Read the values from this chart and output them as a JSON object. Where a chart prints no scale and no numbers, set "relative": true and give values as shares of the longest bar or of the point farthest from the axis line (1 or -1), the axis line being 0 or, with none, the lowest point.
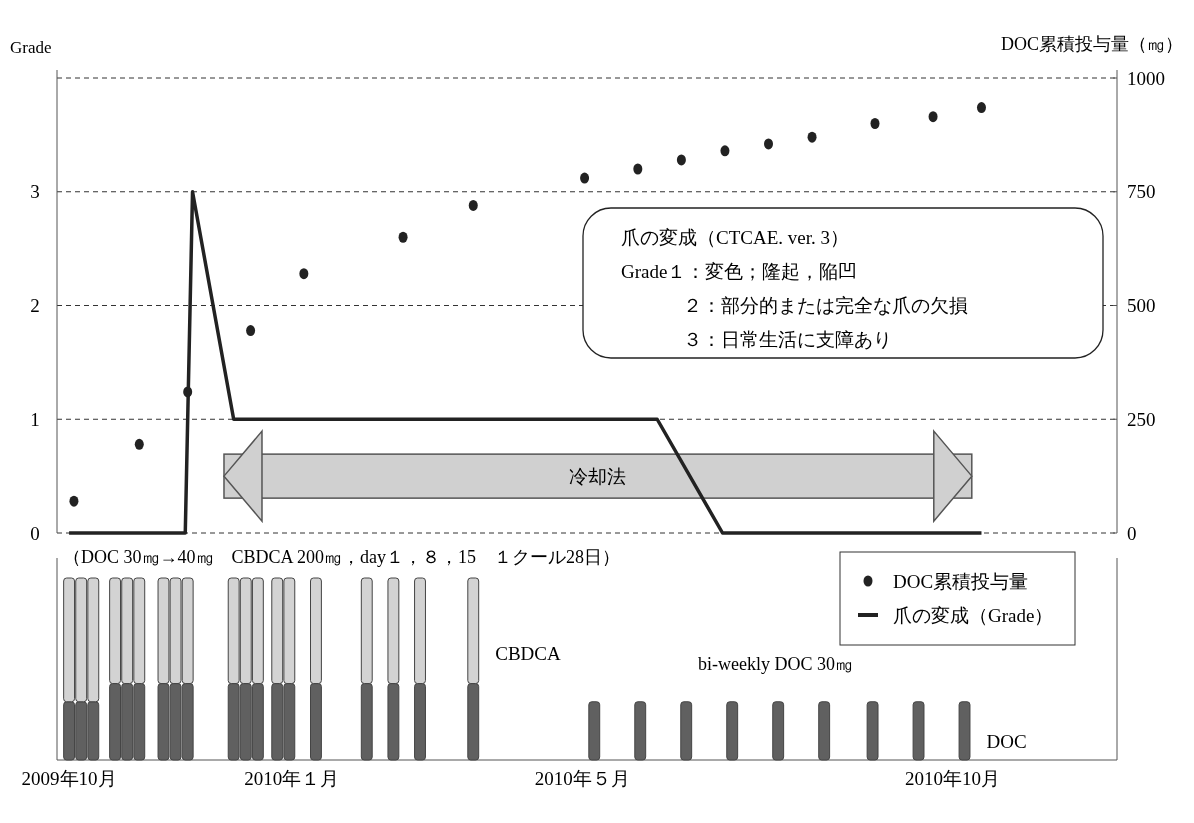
{
  "chart_data": [
    {
      "type": "line",
      "ylabel": "Grade",
      "y2label": "DOC累積投与量（㎎）",
      "xlim": [
        "2009-09-26",
        "2010-12-08"
      ],
      "ylim": [
        0,
        4
      ],
      "yticks": [
        0,
        1,
        2,
        3,
        {
          "value": 4,
          "label": null
        }
      ],
      "y2lim": [
        0,
        1000
      ],
      "y2ticks": [
        0,
        250,
        500,
        750,
        1000
      ],
      "grid": "y",
      "legend": "bottom right",
      "tick_labels": "y",
      "series": [
        {
          "name": "DOC累積投与量",
          "type": "scatter",
          "axis": "y2",
          "color": "#222222",
          "x": [
            "2009-10-03",
            "2009-10-30",
            "2009-11-19",
            "2009-12-15",
            "2010-01-06",
            "2010-02-16",
            "2010-03-17",
            "2010-05-02",
            "2010-05-24",
            "2010-06-11",
            "2010-06-29",
            "2010-07-17",
            "2010-08-04",
            "2010-08-30",
            "2010-09-23",
            "2010-10-13"
          ],
          "values": [
            70,
            195,
            310,
            445,
            570,
            650,
            720,
            780,
            800,
            820,
            840,
            855,
            870,
            900,
            915,
            935
          ]
        },
        {
          "name": "爪の変成（Grade）",
          "color": "#222222",
          "x": [
            "2009-10-01",
            "2009-11-18",
            "2009-11-21",
            "2009-12-08",
            "2010-06-01",
            "2010-06-28",
            "2010-10-13"
          ],
          "values": [
            0,
            0,
            3,
            1,
            1,
            0,
            0
          ]
        }
      ],
      "bands": [
        {
          "axis": "x",
          "from": "2009-12-04",
          "to": "2010-10-09",
          "label": "冷却法",
          "color": "#d0d0d0"
        }
      ],
      "annotations": [
        "爪の変成（CTCAE. ver. 3）",
        "Grade１：変色；隆起，陥凹",
        "２：部分的または完全な爪の欠損",
        "３：日常生活に支障あり"
      ]
    },
    {
      "type": "bar",
      "stacked": true,
      "relative": true,
      "xlim": [
        "2009-09-26",
        "2010-12-08"
      ],
      "xticks": [
        {
          "value": "2009-10",
          "label": "2009年10月"
        },
        {
          "value": "2010-01",
          "label": "2010年１月"
        },
        {
          "value": "2010-05",
          "label": "2010年５月"
        },
        {
          "value": "2010-10",
          "label": "2010年10月"
        }
      ],
      "tick_labels": "x",
      "x": [
        "2009-10-01",
        "2009-10-06",
        "2009-10-11",
        "2009-10-20",
        "2009-10-25",
        "2009-10-30",
        "2009-11-09",
        "2009-11-14",
        "2009-11-19",
        "2009-12-08",
        "2009-12-13",
        "2009-12-18",
        "2009-12-26",
        "2009-12-31",
        "2010-01-11",
        "2010-02-01",
        "2010-02-12",
        "2010-02-23",
        "2010-03-17",
        "2010-05-06",
        "2010-05-25",
        "2010-06-13",
        "2010-07-02",
        "2010-07-21",
        "2010-08-09",
        "2010-08-29",
        "2010-09-17",
        "2010-10-06"
      ],
      "series": [
        {
          "name": "DOC",
          "color": "#606060",
          "values": [
            0.32,
            0.32,
            0.32,
            0.42,
            0.42,
            0.42,
            0.42,
            0.42,
            0.42,
            0.42,
            0.42,
            0.42,
            0.42,
            0.42,
            0.42,
            0.42,
            0.42,
            0.42,
            0.42,
            0.32,
            0.32,
            0.32,
            0.32,
            0.32,
            0.32,
            0.32,
            0.32,
            0.32
          ]
        },
        {
          "name": "CBDCA",
          "color": "#d3d3d3",
          "values": [
            0.68,
            0.68,
            0.68,
            0.58,
            0.58,
            0.58,
            0.58,
            0.58,
            0.58,
            0.58,
            0.58,
            0.58,
            0.58,
            0.58,
            0.58,
            0.58,
            0.58,
            0.58,
            0.58,
            null,
            null,
            null,
            null,
            null,
            null,
            null,
            null,
            null
          ]
        }
      ],
      "annotations": [
        "（DOC 30㎎→40㎎　CBDCA 200㎎，day１，８，15　１クール28日）",
        "bi-weekly DOC 30㎎"
      ]
    }
  ]
}
